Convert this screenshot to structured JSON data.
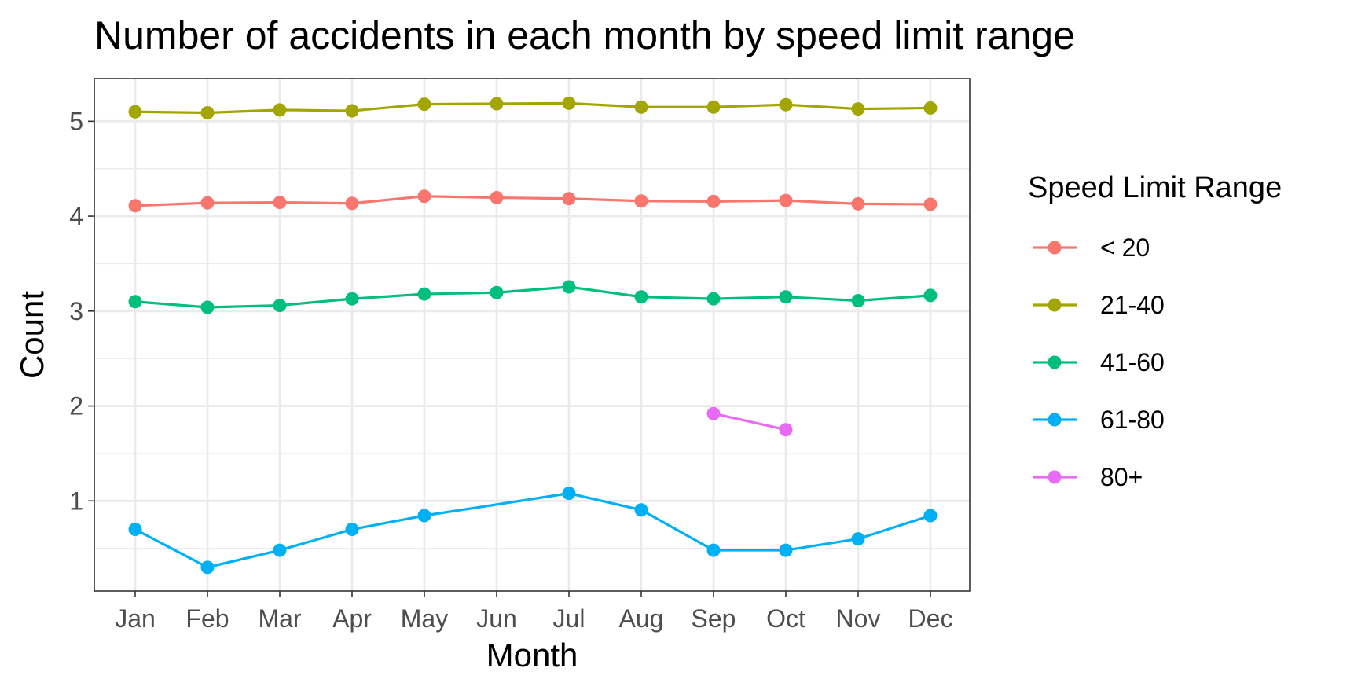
{
  "chart_data": {
    "type": "line",
    "title": "Number of accidents in each month by speed limit range",
    "xlabel": "Month",
    "ylabel": "Count",
    "categories": [
      "Jan",
      "Feb",
      "Mar",
      "Apr",
      "May",
      "Jun",
      "Jul",
      "Aug",
      "Sep",
      "Oct",
      "Nov",
      "Dec"
    ],
    "ylim": [
      0.05,
      5.45
    ],
    "yticks": [
      1,
      2,
      3,
      4,
      5
    ],
    "grid": true,
    "legend_title": "Speed Limit Range",
    "legend_position": "right",
    "series": [
      {
        "name": "< 20",
        "color": "#F8766D",
        "values": [
          4.11,
          4.14,
          4.145,
          4.135,
          4.21,
          4.195,
          4.185,
          4.16,
          4.155,
          4.165,
          4.13,
          4.125
        ]
      },
      {
        "name": "21-40",
        "color": "#A3A500",
        "values": [
          5.1,
          5.09,
          5.12,
          5.11,
          5.18,
          5.185,
          5.19,
          5.15,
          5.15,
          5.175,
          5.13,
          5.14
        ]
      },
      {
        "name": "41-60",
        "color": "#00BF7D",
        "values": [
          3.1,
          3.04,
          3.06,
          3.13,
          3.18,
          3.195,
          3.255,
          3.15,
          3.13,
          3.15,
          3.11,
          3.165
        ]
      },
      {
        "name": "61-80",
        "color": "#00B0F6",
        "values": [
          0.7,
          0.3,
          0.48,
          0.7,
          0.845,
          null,
          1.08,
          0.905,
          0.48,
          0.48,
          0.6,
          0.845
        ]
      },
      {
        "name": "80+",
        "color": "#E76BF3",
        "values": [
          null,
          null,
          null,
          null,
          null,
          null,
          null,
          null,
          1.92,
          1.75,
          null,
          null
        ]
      }
    ]
  }
}
